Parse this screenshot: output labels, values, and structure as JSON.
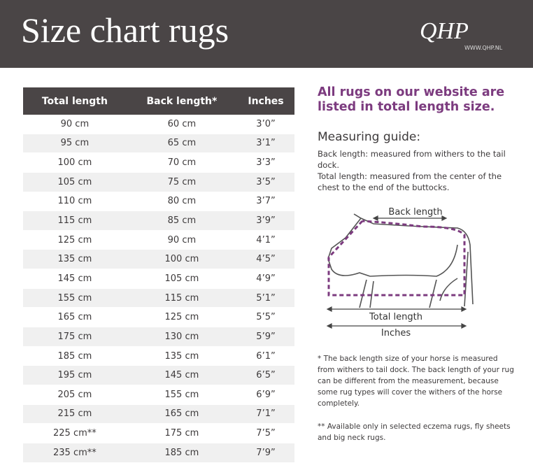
{
  "header": {
    "title": "Size chart rugs",
    "logo": "QHP",
    "url": "WWW.QHP.NL"
  },
  "table": {
    "headers": [
      "Total length",
      "Back length*",
      "Inches"
    ],
    "rows": [
      [
        "90 cm",
        "60 cm",
        "3’0”"
      ],
      [
        "95 cm",
        "65 cm",
        "3’1”"
      ],
      [
        "100 cm",
        "70 cm",
        "3’3”"
      ],
      [
        "105 cm",
        "75 cm",
        "3’5”"
      ],
      [
        "110 cm",
        "80 cm",
        "3’7”"
      ],
      [
        "115 cm",
        "85 cm",
        "3’9”"
      ],
      [
        "125 cm",
        "90 cm",
        "4’1”"
      ],
      [
        "135 cm",
        "100 cm",
        "4’5”"
      ],
      [
        "145 cm",
        "105 cm",
        "4’9”"
      ],
      [
        "155 cm",
        "115 cm",
        "5’1”"
      ],
      [
        "165 cm",
        "125 cm",
        "5’5”"
      ],
      [
        "175 cm",
        "130 cm",
        "5’9”"
      ],
      [
        "185 cm",
        "135 cm",
        "6’1”"
      ],
      [
        "195 cm",
        "145 cm",
        "6’5”"
      ],
      [
        "205 cm",
        "155 cm",
        "6’9”"
      ],
      [
        "215 cm",
        "165 cm",
        "7’1”"
      ],
      [
        "225 cm**",
        "175 cm",
        "7’5”"
      ],
      [
        "235 cm**",
        "185 cm",
        "7’9”"
      ]
    ]
  },
  "info": {
    "highlight": "All rugs on our website are listed in total length size.",
    "guide_title": "Measuring guide:",
    "guide_lines": [
      "Back length: measured from withers to the tail dock.",
      "Total length: measured from the center of the chest to the end of the buttocks."
    ],
    "diagram": {
      "back_length": "Back length",
      "total_length": "Total length",
      "inches": "Inches"
    },
    "footnotes": [
      "* The back length size of your horse is measured from withers to tail dock. The back length of your rug can be different from the measurement, because some rug types will cover the withers of the horse completely.",
      "** Available only in selected eczema rugs, fly sheets and big neck rugs."
    ]
  }
}
